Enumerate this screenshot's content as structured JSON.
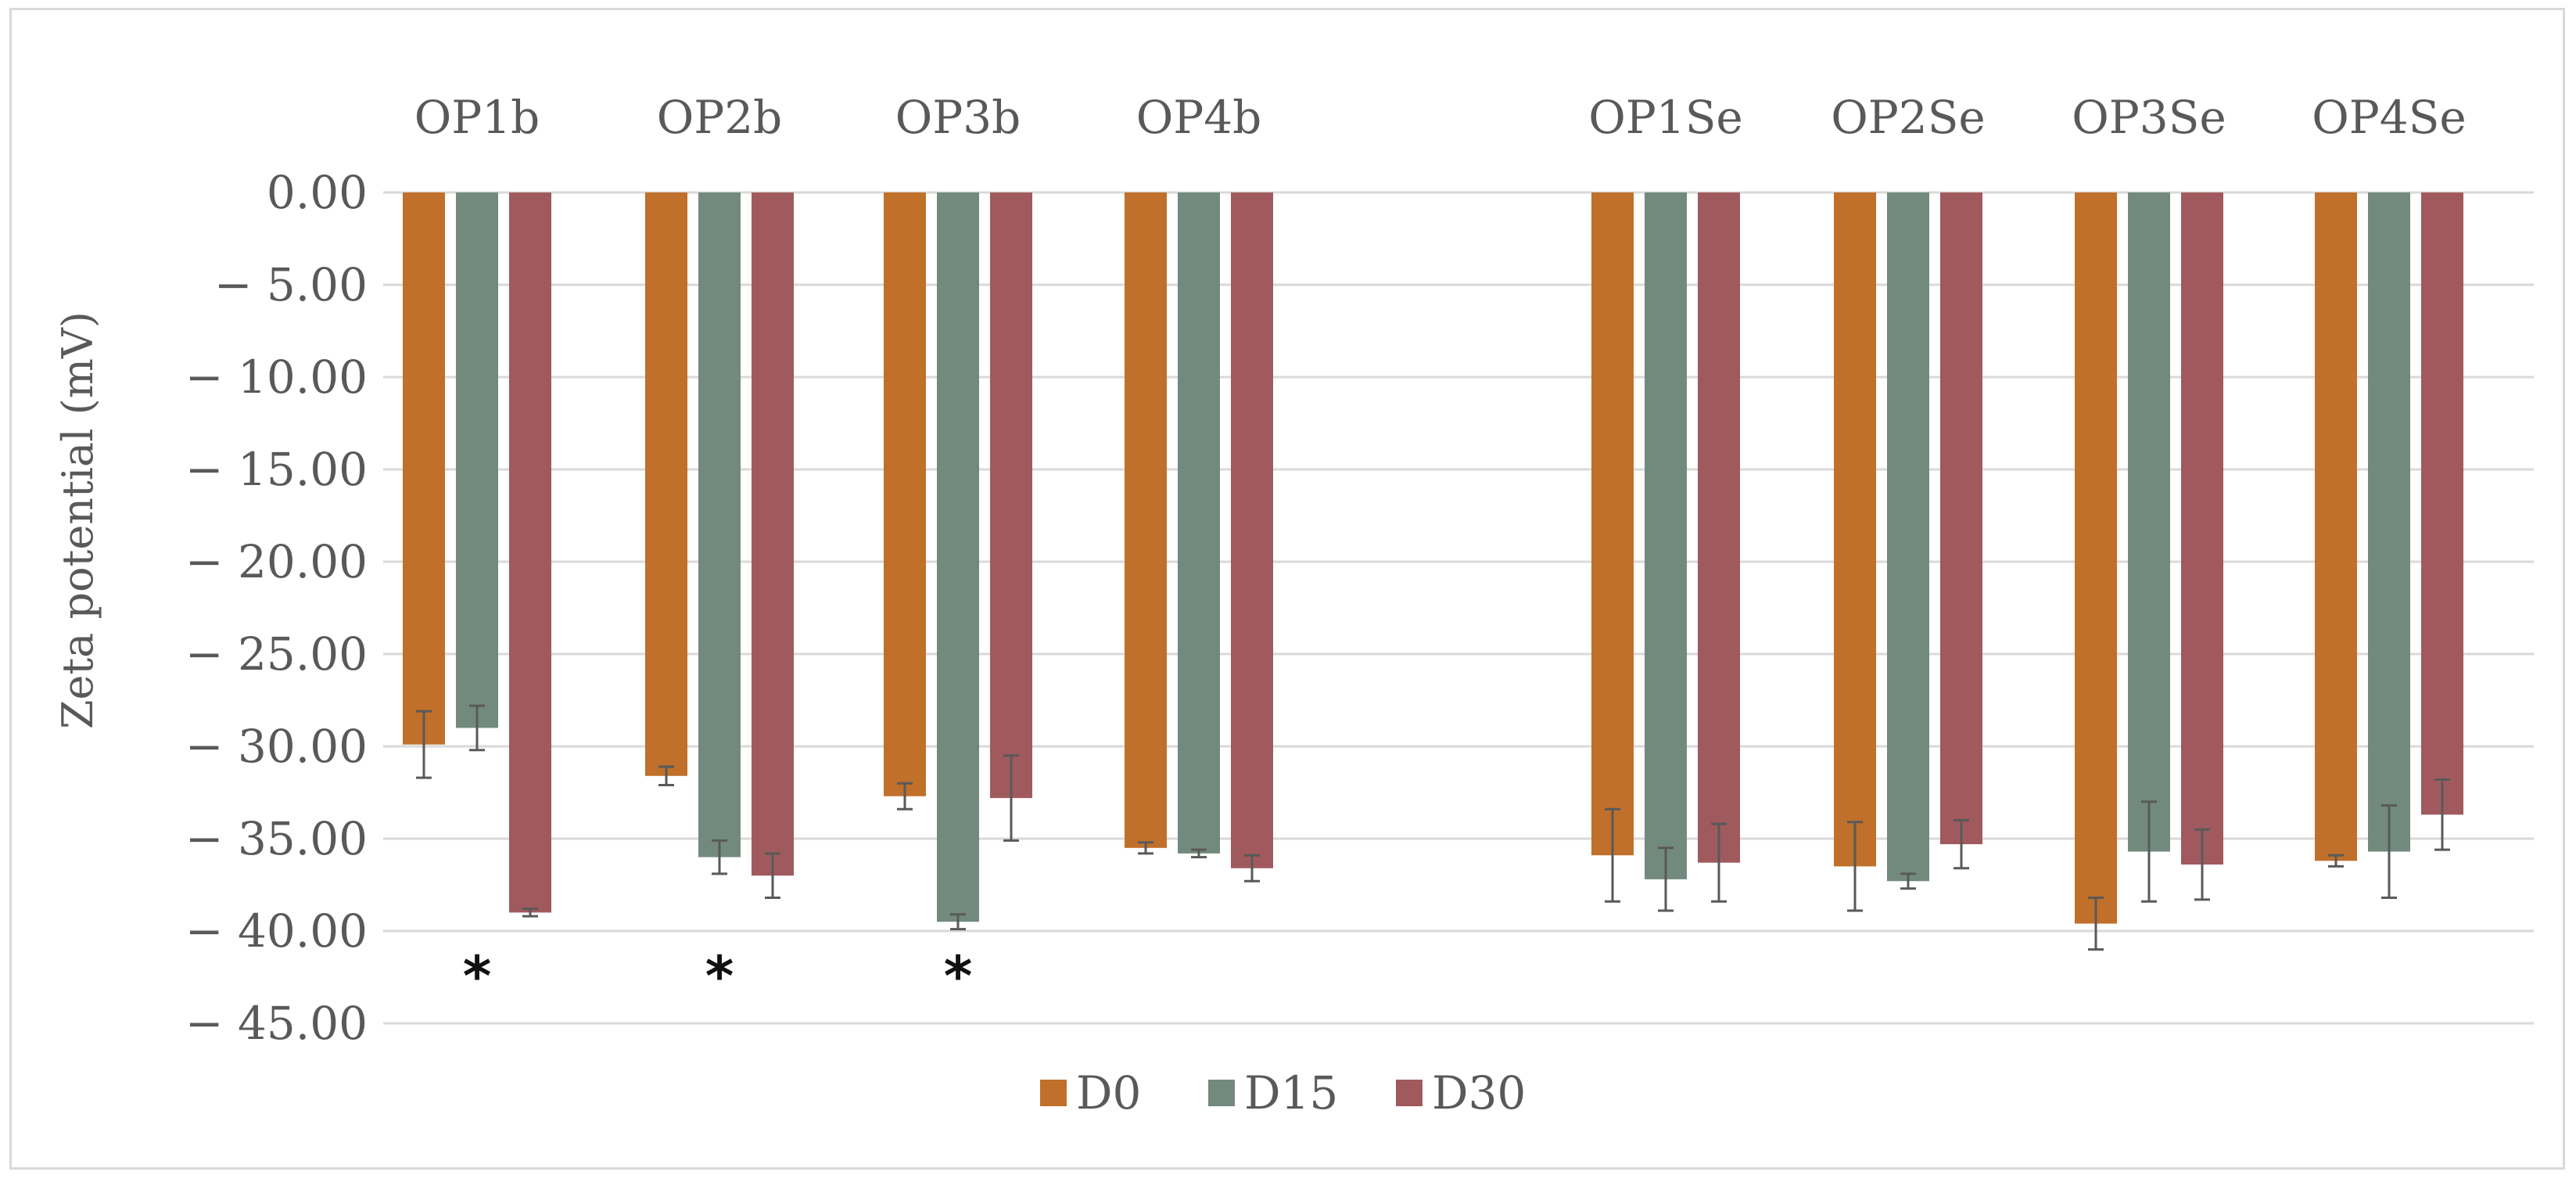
{
  "chart_data": {
    "type": "bar",
    "title": "",
    "xlabel": "",
    "ylabel": "Zeta potential (mV)",
    "ylim": [
      -45,
      0
    ],
    "y_ticks": [
      0,
      -5,
      -10,
      -15,
      -20,
      -25,
      -30,
      -35,
      -40,
      -45
    ],
    "y_tick_labels": [
      "0.00",
      "− 5.00",
      "− 10.00",
      "− 15.00",
      "− 20.00",
      "− 25.00",
      "− 30.00",
      "− 35.00",
      "− 40.00",
      "− 45.00"
    ],
    "gridlines": true,
    "legend_position": "bottom",
    "categories": [
      "OP1b",
      "OP2b",
      "OP3b",
      "OP4b",
      "OP1Se",
      "OP2Se",
      "OP3Se",
      "OP4Se"
    ],
    "series": [
      {
        "name": "D0",
        "color": "#C0702A",
        "values": [
          -29.9,
          -31.6,
          -32.7,
          -35.5,
          -35.9,
          -36.5,
          -39.6,
          -36.2
        ],
        "errors": [
          1.8,
          0.5,
          0.7,
          0.3,
          2.5,
          2.4,
          1.4,
          0.3
        ]
      },
      {
        "name": "D15",
        "color": "#728A7E",
        "values": [
          -29.0,
          -36.0,
          -39.5,
          -35.8,
          -37.2,
          -37.3,
          -35.7,
          -35.7
        ],
        "errors": [
          1.2,
          0.9,
          0.4,
          0.2,
          1.7,
          0.4,
          2.7,
          2.5
        ]
      },
      {
        "name": "D30",
        "color": "#A05A5E",
        "values": [
          -39.0,
          -37.0,
          -32.8,
          -36.6,
          -36.3,
          -35.3,
          -36.4,
          -33.7
        ],
        "errors": [
          0.2,
          1.2,
          2.3,
          0.7,
          2.1,
          1.3,
          1.9,
          1.9
        ]
      }
    ],
    "annotations": [
      {
        "text": "*",
        "category": "OP1b"
      },
      {
        "text": "*",
        "category": "OP2b"
      },
      {
        "text": "*",
        "category": "OP3b"
      }
    ]
  }
}
